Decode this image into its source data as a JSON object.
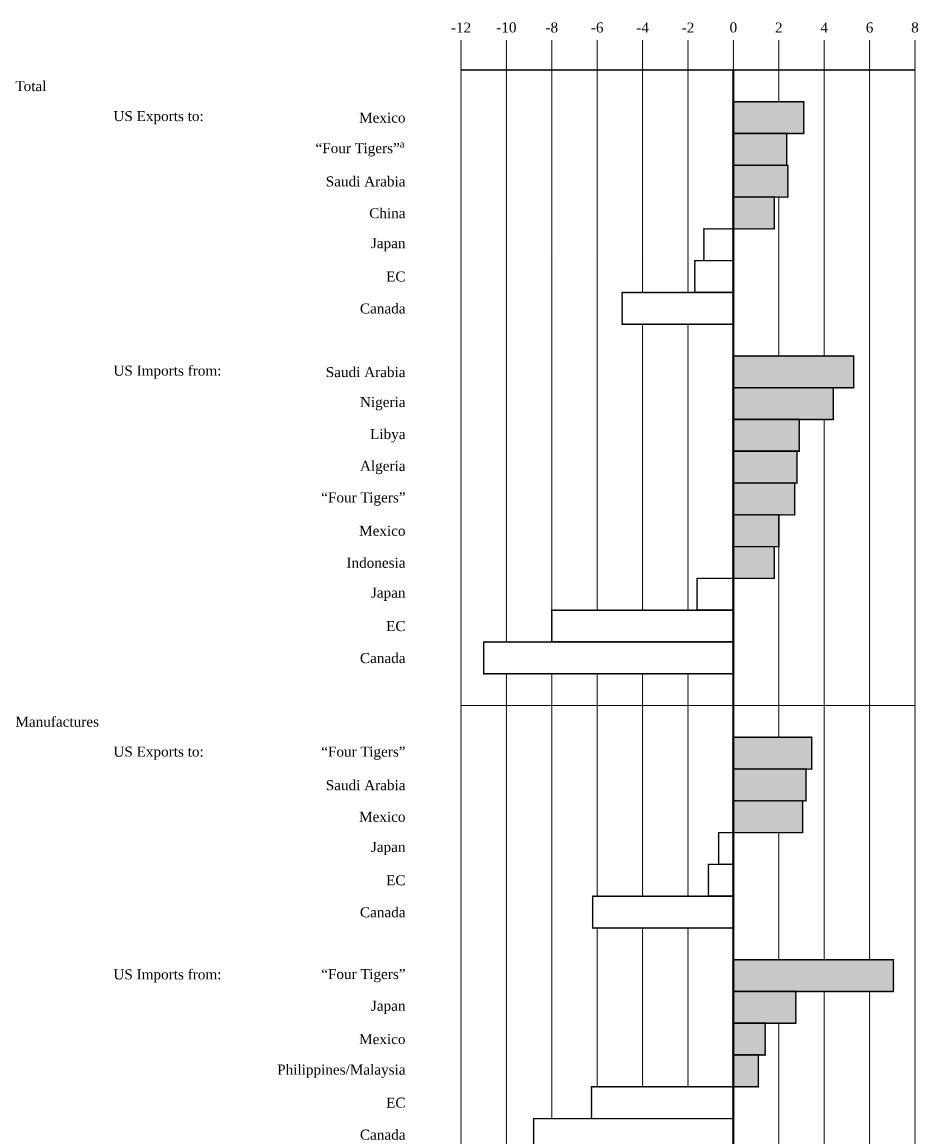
{
  "chart_data": {
    "type": "bar",
    "orientation": "horizontal",
    "categories": [
      null,
      "Mexico",
      "“Four Tigers”$^{a}$",
      "Saudi Arabia",
      "China",
      "Japan",
      "EC",
      "Canada",
      null,
      "Saudi Arabia",
      "Nigeria",
      "Libya",
      "Algeria",
      "“Four Tigers”",
      "Mexico",
      "Indonesia",
      "Japan",
      "EC",
      "Canada",
      null,
      null,
      "“Four Tigers”",
      "Saudi Arabia",
      "Mexico",
      "Japan",
      "EC",
      "Canada",
      null,
      "“Four Tigers”",
      "Japan",
      "Mexico",
      "Philippines/Malaysia",
      "EC",
      "Canada"
    ],
    "values": [
      null,
      3.1,
      2.35,
      2.4,
      1.8,
      -1.3,
      -1.7,
      -4.9,
      null,
      5.3,
      4.4,
      2.9,
      2.8,
      2.7,
      2.0,
      1.8,
      -1.6,
      -8.0,
      -11.0,
      null,
      null,
      3.45,
      3.2,
      3.05,
      -0.65,
      -1.1,
      -6.2,
      null,
      7.05,
      2.75,
      1.4,
      1.1,
      -6.25,
      -8.8
    ],
    "colors": [
      null,
      "#c8c8c8",
      "#c8c8c8",
      "#c8c8c8",
      "#c8c8c8",
      "#ffffff",
      "#ffffff",
      "#ffffff",
      null,
      "#c8c8c8",
      "#c8c8c8",
      "#c8c8c8",
      "#c8c8c8",
      "#c8c8c8",
      "#c8c8c8",
      "#c8c8c8",
      "#ffffff",
      "#ffffff",
      "#ffffff",
      null,
      null,
      "#c8c8c8",
      "#c8c8c8",
      "#c8c8c8",
      "#ffffff",
      "#ffffff",
      "#ffffff",
      null,
      "#c8c8c8",
      "#c8c8c8",
      "#c8c8c8",
      "#c8c8c8",
      "#ffffff",
      "#ffffff"
    ],
    "xlim": [
      -12,
      8
    ],
    "xticks": [
      -12,
      -10,
      -8,
      -6,
      -4,
      -2,
      0,
      2,
      4,
      6,
      8
    ],
    "grid": "x",
    "annotations": [
      "Total",
      "US Exports to:",
      "US Imports from:",
      "Manufactures",
      "US Exports to:",
      "US Imports from:"
    ]
  }
}
